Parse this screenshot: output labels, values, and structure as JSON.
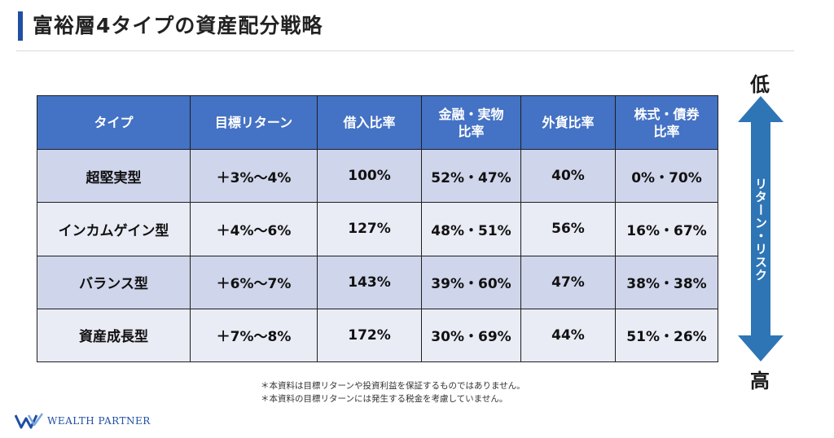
{
  "header": {
    "title": "富裕層4タイプの資産配分戦略"
  },
  "table": {
    "headers": [
      "タイプ",
      "目標リターン",
      "借入比率",
      "金融・実物\n比率",
      "外貨比率",
      "株式・債券\n比率"
    ],
    "rows": [
      [
        "超堅実型",
        "＋3%〜4%",
        "100%",
        "52%・47%",
        "40%",
        "0%・70%"
      ],
      [
        "インカムゲイン型",
        "＋4%〜6%",
        "127%",
        "48%・51%",
        "56%",
        "16%・67%"
      ],
      [
        "バランス型",
        "＋6%〜7%",
        "143%",
        "39%・60%",
        "47%",
        "38%・38%"
      ],
      [
        "資産成長型",
        "＋7%〜8%",
        "172%",
        "30%・69%",
        "44%",
        "51%・26%"
      ]
    ]
  },
  "scale": {
    "low_label": "低",
    "high_label": "高",
    "axis_label": "リターン・リスク",
    "color": "#2e75b6"
  },
  "notes": [
    "＊本資料は目標リターンや投資利益を保証するものではありません。",
    "＊本資料の目標リターンには発生する税金を考慮していません。"
  ],
  "footer": {
    "logo_text": "WEALTH PARTNER",
    "logo_icon": "wp-logo-icon"
  },
  "colors": {
    "accent": "#1f4fa3",
    "header_fill": "#4472c4",
    "row_band": "#cfd5ea",
    "row_plain": "#e9ebf5"
  }
}
